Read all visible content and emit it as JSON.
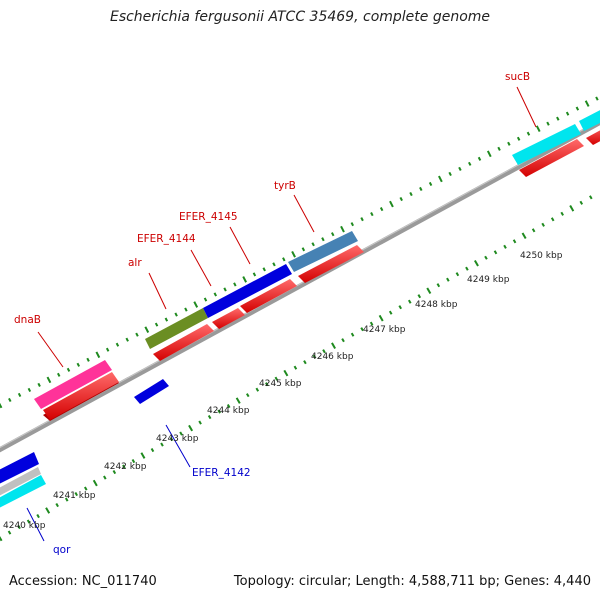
{
  "title": "Escherichia fergusonii ATCC 35469, complete genome",
  "footer": {
    "accession": "Accession: NC_011740",
    "topology": "Topology: circular; Length: 4,588,711 bp; Genes: 4,440"
  },
  "colors": {
    "backbone": "#8a8a8a",
    "tick": "#1f8a1f",
    "fwd_label": "#cc0000",
    "rev_label": "#0000cc",
    "cds": "#ff0000"
  },
  "scale": {
    "kbp_labels": [
      {
        "kbp": 4240,
        "label": "4240 kbp"
      },
      {
        "kbp": 4241,
        "label": "4241 kbp"
      },
      {
        "kbp": 4242,
        "label": "4242 kbp"
      },
      {
        "kbp": 4243,
        "label": "4243 kbp"
      },
      {
        "kbp": 4244,
        "label": "4244 kbp"
      },
      {
        "kbp": 4245,
        "label": "4245 kbp"
      },
      {
        "kbp": 4246,
        "label": "4246 kbp"
      },
      {
        "kbp": 4247,
        "label": "4247 kbp"
      },
      {
        "kbp": 4248,
        "label": "4248 kbp"
      },
      {
        "kbp": 4249,
        "label": "4249 kbp"
      },
      {
        "kbp": 4250,
        "label": "4250 kbp"
      }
    ]
  },
  "genes_forward": [
    {
      "name": "dnaB",
      "start_kbp": 4240.4,
      "end_kbp": 4241.8,
      "color": "#ff3399"
    },
    {
      "name": "alr",
      "start_kbp": 4242.5,
      "end_kbp": 4243.7,
      "color": "#6b8e23"
    },
    {
      "name": "EFER_4144",
      "start_kbp": 4243.7,
      "end_kbp": 4245.2,
      "color": "#0000dd"
    },
    {
      "name": "EFER_4145",
      "start_kbp": 4243.7,
      "end_kbp": 4245.2,
      "color": "#0000dd"
    },
    {
      "name": "tyrB",
      "start_kbp": 4245.2,
      "end_kbp": 4246.4,
      "color": "#4682b4"
    },
    {
      "name": "sucB",
      "start_kbp": 4249.0,
      "end_kbp": 4250.3,
      "color": "#00e5ee"
    }
  ],
  "genes_reverse": [
    {
      "name": "EFER_4142",
      "color": "#0000dd"
    },
    {
      "name": "qor",
      "color": "#00e5ee"
    }
  ]
}
